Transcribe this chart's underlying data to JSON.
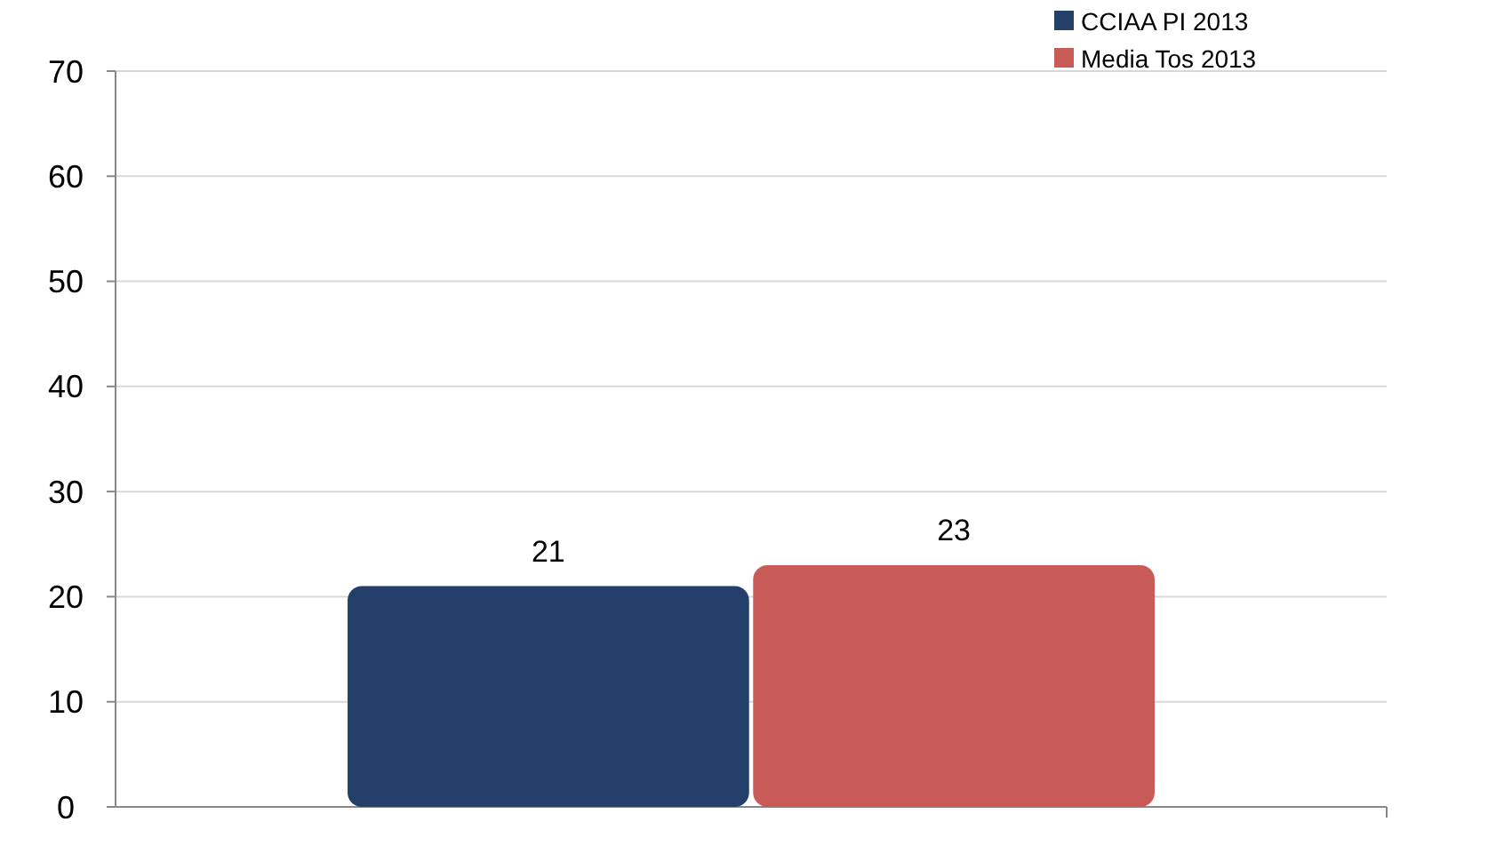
{
  "chart_data": {
    "type": "bar",
    "categories": [
      null
    ],
    "series": [
      {
        "name": "CCIAA PI 2013",
        "color": "#243f6a",
        "values": [
          21
        ]
      },
      {
        "name": "Media Tos 2013",
        "color": "#c85a57",
        "values": [
          23
        ]
      }
    ],
    "ylim": [
      0,
      70
    ],
    "yticks": [
      0,
      10,
      20,
      30,
      40,
      50,
      60,
      70
    ],
    "grid": "y",
    "legend": "top right",
    "data_labels": true
  }
}
